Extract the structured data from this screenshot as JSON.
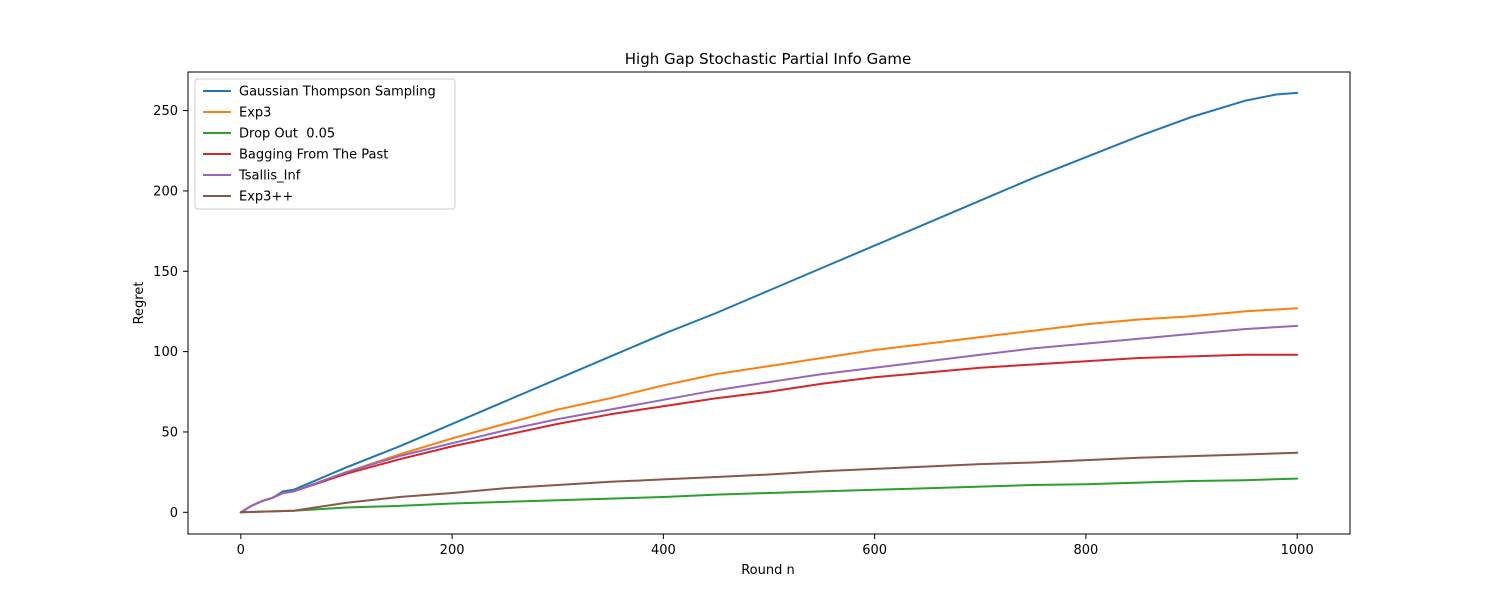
{
  "chart_data": {
    "type": "line",
    "title": "High Gap Stochastic Partial Info Game",
    "xlabel": "Round n",
    "ylabel": "Regret",
    "xlim": [
      -50,
      1050
    ],
    "ylim": [
      -13.5,
      274
    ],
    "xticks": [
      0,
      200,
      400,
      600,
      800,
      1000
    ],
    "yticks": [
      0,
      50,
      100,
      150,
      200,
      250
    ],
    "grid": false,
    "legend_position": "top-left",
    "series": [
      {
        "name": "Gaussian Thompson Sampling",
        "color": "#1f77b4",
        "x": [
          0,
          10,
          20,
          30,
          40,
          50,
          100,
          150,
          200,
          250,
          300,
          350,
          400,
          450,
          500,
          550,
          600,
          650,
          700,
          750,
          800,
          850,
          900,
          950,
          980,
          1000
        ],
        "y": [
          0,
          4,
          7,
          9,
          13,
          14,
          28,
          41,
          55,
          69,
          83,
          97,
          111,
          124,
          138,
          152,
          166,
          180,
          194,
          208,
          221,
          234,
          246,
          256,
          260,
          261
        ]
      },
      {
        "name": "Exp3",
        "color": "#ff7f0e",
        "x": [
          0,
          10,
          20,
          30,
          40,
          50,
          100,
          150,
          200,
          250,
          300,
          350,
          400,
          450,
          500,
          550,
          600,
          650,
          700,
          750,
          800,
          850,
          900,
          950,
          1000
        ],
        "y": [
          0,
          4,
          7,
          9,
          12,
          13,
          25,
          36,
          46,
          55,
          64,
          71,
          79,
          86,
          91,
          96,
          101,
          105,
          109,
          113,
          117,
          120,
          122,
          125,
          127
        ]
      },
      {
        "name": "Drop Out  0.05",
        "color": "#2ca02c",
        "x": [
          0,
          50,
          100,
          150,
          200,
          250,
          300,
          350,
          400,
          450,
          500,
          550,
          600,
          650,
          700,
          750,
          800,
          850,
          900,
          950,
          1000
        ],
        "y": [
          0,
          1,
          3,
          4,
          5.5,
          6.5,
          7.5,
          8.5,
          9.5,
          11,
          12,
          13,
          14,
          15,
          16,
          17,
          17.5,
          18.5,
          19.5,
          20,
          21
        ]
      },
      {
        "name": "Bagging From The Past",
        "color": "#d62728",
        "x": [
          0,
          10,
          20,
          30,
          40,
          50,
          100,
          150,
          200,
          250,
          300,
          350,
          400,
          450,
          500,
          550,
          600,
          650,
          700,
          750,
          800,
          850,
          900,
          950,
          1000
        ],
        "y": [
          0,
          4,
          7,
          9,
          12,
          13,
          24,
          33,
          41,
          48,
          55,
          61,
          66,
          71,
          75,
          80,
          84,
          87,
          90,
          92,
          94,
          96,
          97,
          98,
          98
        ]
      },
      {
        "name": "Tsallis_Inf",
        "color": "#9467bd",
        "x": [
          0,
          10,
          20,
          30,
          40,
          50,
          100,
          150,
          200,
          250,
          300,
          350,
          400,
          450,
          500,
          550,
          600,
          650,
          700,
          750,
          800,
          850,
          900,
          950,
          1000
        ],
        "y": [
          0,
          4,
          7,
          9,
          12,
          13,
          25,
          35,
          43,
          51,
          58,
          64,
          70,
          76,
          81,
          86,
          90,
          94,
          98,
          102,
          105,
          108,
          111,
          114,
          116
        ]
      },
      {
        "name": "Exp3++",
        "color": "#8c564b",
        "x": [
          0,
          50,
          100,
          150,
          200,
          250,
          300,
          350,
          400,
          450,
          500,
          550,
          600,
          650,
          700,
          750,
          800,
          850,
          900,
          950,
          1000
        ],
        "y": [
          0,
          1,
          6,
          9.5,
          12,
          15,
          17,
          19,
          20.5,
          22,
          23.5,
          25.5,
          27,
          28.5,
          30,
          31,
          32.5,
          34,
          35,
          36,
          37
        ]
      }
    ]
  }
}
